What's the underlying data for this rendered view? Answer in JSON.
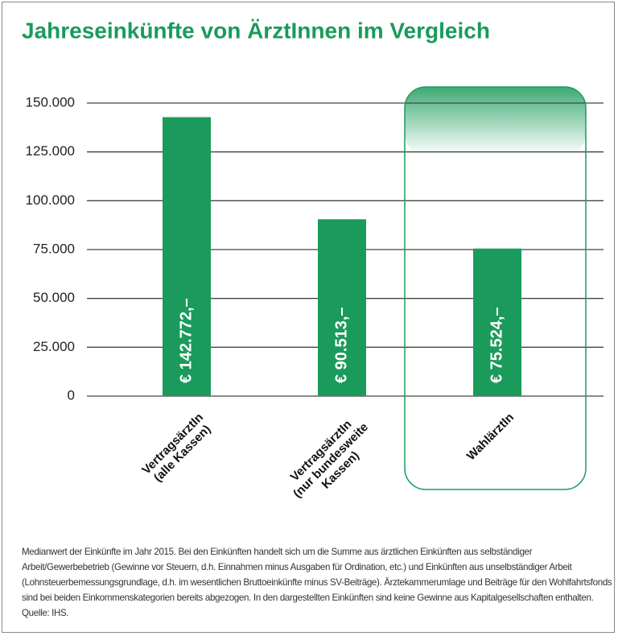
{
  "chart_data": {
    "type": "bar",
    "title": "Jahreseinkünfte von ÄrztInnen im Vergleich",
    "categories": [
      "VertragsärztIn\n(alle Kassen)",
      "VertragsärztIn\n(nur bundesweite\nKassen)",
      "WahlärztIn"
    ],
    "values": [
      142772,
      90513,
      75524
    ],
    "value_labels": [
      "€ 142.772,–",
      "€ 90.513,–",
      "€ 75.524,–"
    ],
    "color": "#1a9b5b",
    "ylim": [
      0,
      150000
    ],
    "yticks": [
      0,
      {
        "value": 25000,
        "label": "25.000"
      },
      {
        "value": 50000,
        "label": "50.000"
      },
      {
        "value": 75000,
        "label": "75.000"
      },
      {
        "value": 100000,
        "label": "100.000"
      },
      {
        "value": 125000,
        "label": "125.000"
      },
      {
        "value": 150000,
        "label": "150.000"
      }
    ],
    "grid": true,
    "note": "Medianwert der Einkünfte im Jahr 2015. Bei den Einkünften handelt sich um die Summe aus ärztlichen Einkünften aus selbständiger Arbeit/Gewerbebetrieb (Gewinne vor Steuern, d.h. Einnahmen minus Ausgaben für Ordination, etc.) und Einkünften aus unselbständiger Arbeit (Lohnsteuerbemessungsgrundlage, d.h. im wesentlichen Bruttoeinkünfte minus SV-Beiträge). Ärztekammerumlage und Beiträge für den Wohlfahrtsfonds sind bei beiden Einkommenskategorien bereits abgezogen. In den dargestellten Einkünften sind keine Gewinne aus Kapitalgesellschaften enthalten. Quelle: IHS."
  }
}
